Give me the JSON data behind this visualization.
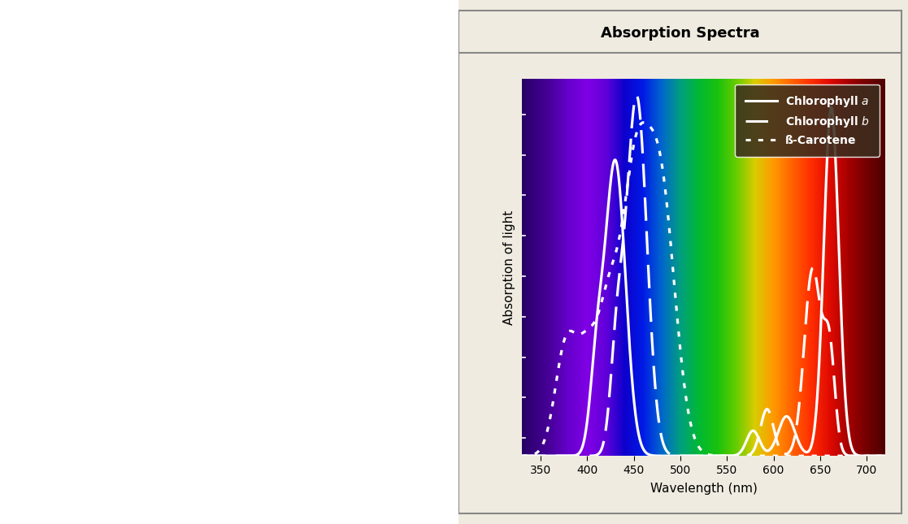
{
  "title": "Absorption Spectra",
  "xlabel": "Wavelength (nm)",
  "ylabel": "Absorption of light",
  "xlim": [
    330,
    720
  ],
  "ylim": [
    0,
    1.05
  ],
  "xticks": [
    350,
    400,
    450,
    500,
    550,
    600,
    650,
    700
  ],
  "legend_labels": [
    "Chlorophyll a",
    "Chlorophyll b",
    "ß-Carotene"
  ],
  "outer_bg": "#f0ebe0",
  "spectral_colors": [
    [
      330,
      [
        0.15,
        0.0,
        0.4
      ]
    ],
    [
      360,
      [
        0.28,
        0.0,
        0.6
      ]
    ],
    [
      380,
      [
        0.4,
        0.0,
        0.8
      ]
    ],
    [
      400,
      [
        0.5,
        0.0,
        0.9
      ]
    ],
    [
      420,
      [
        0.38,
        0.0,
        0.85
      ]
    ],
    [
      440,
      [
        0.05,
        0.0,
        0.8
      ]
    ],
    [
      460,
      [
        0.0,
        0.1,
        0.9
      ]
    ],
    [
      480,
      [
        0.0,
        0.4,
        0.8
      ]
    ],
    [
      500,
      [
        0.0,
        0.62,
        0.5
      ]
    ],
    [
      520,
      [
        0.0,
        0.72,
        0.2
      ]
    ],
    [
      540,
      [
        0.1,
        0.76,
        0.05
      ]
    ],
    [
      560,
      [
        0.4,
        0.8,
        0.0
      ]
    ],
    [
      580,
      [
        0.85,
        0.8,
        0.0
      ]
    ],
    [
      600,
      [
        1.0,
        0.6,
        0.0
      ]
    ],
    [
      620,
      [
        1.0,
        0.38,
        0.0
      ]
    ],
    [
      640,
      [
        1.0,
        0.18,
        0.0
      ]
    ],
    [
      660,
      [
        0.88,
        0.04,
        0.0
      ]
    ],
    [
      680,
      [
        0.65,
        0.0,
        0.0
      ]
    ],
    [
      700,
      [
        0.45,
        0.0,
        0.0
      ]
    ],
    [
      720,
      [
        0.3,
        0.0,
        0.0
      ]
    ]
  ]
}
